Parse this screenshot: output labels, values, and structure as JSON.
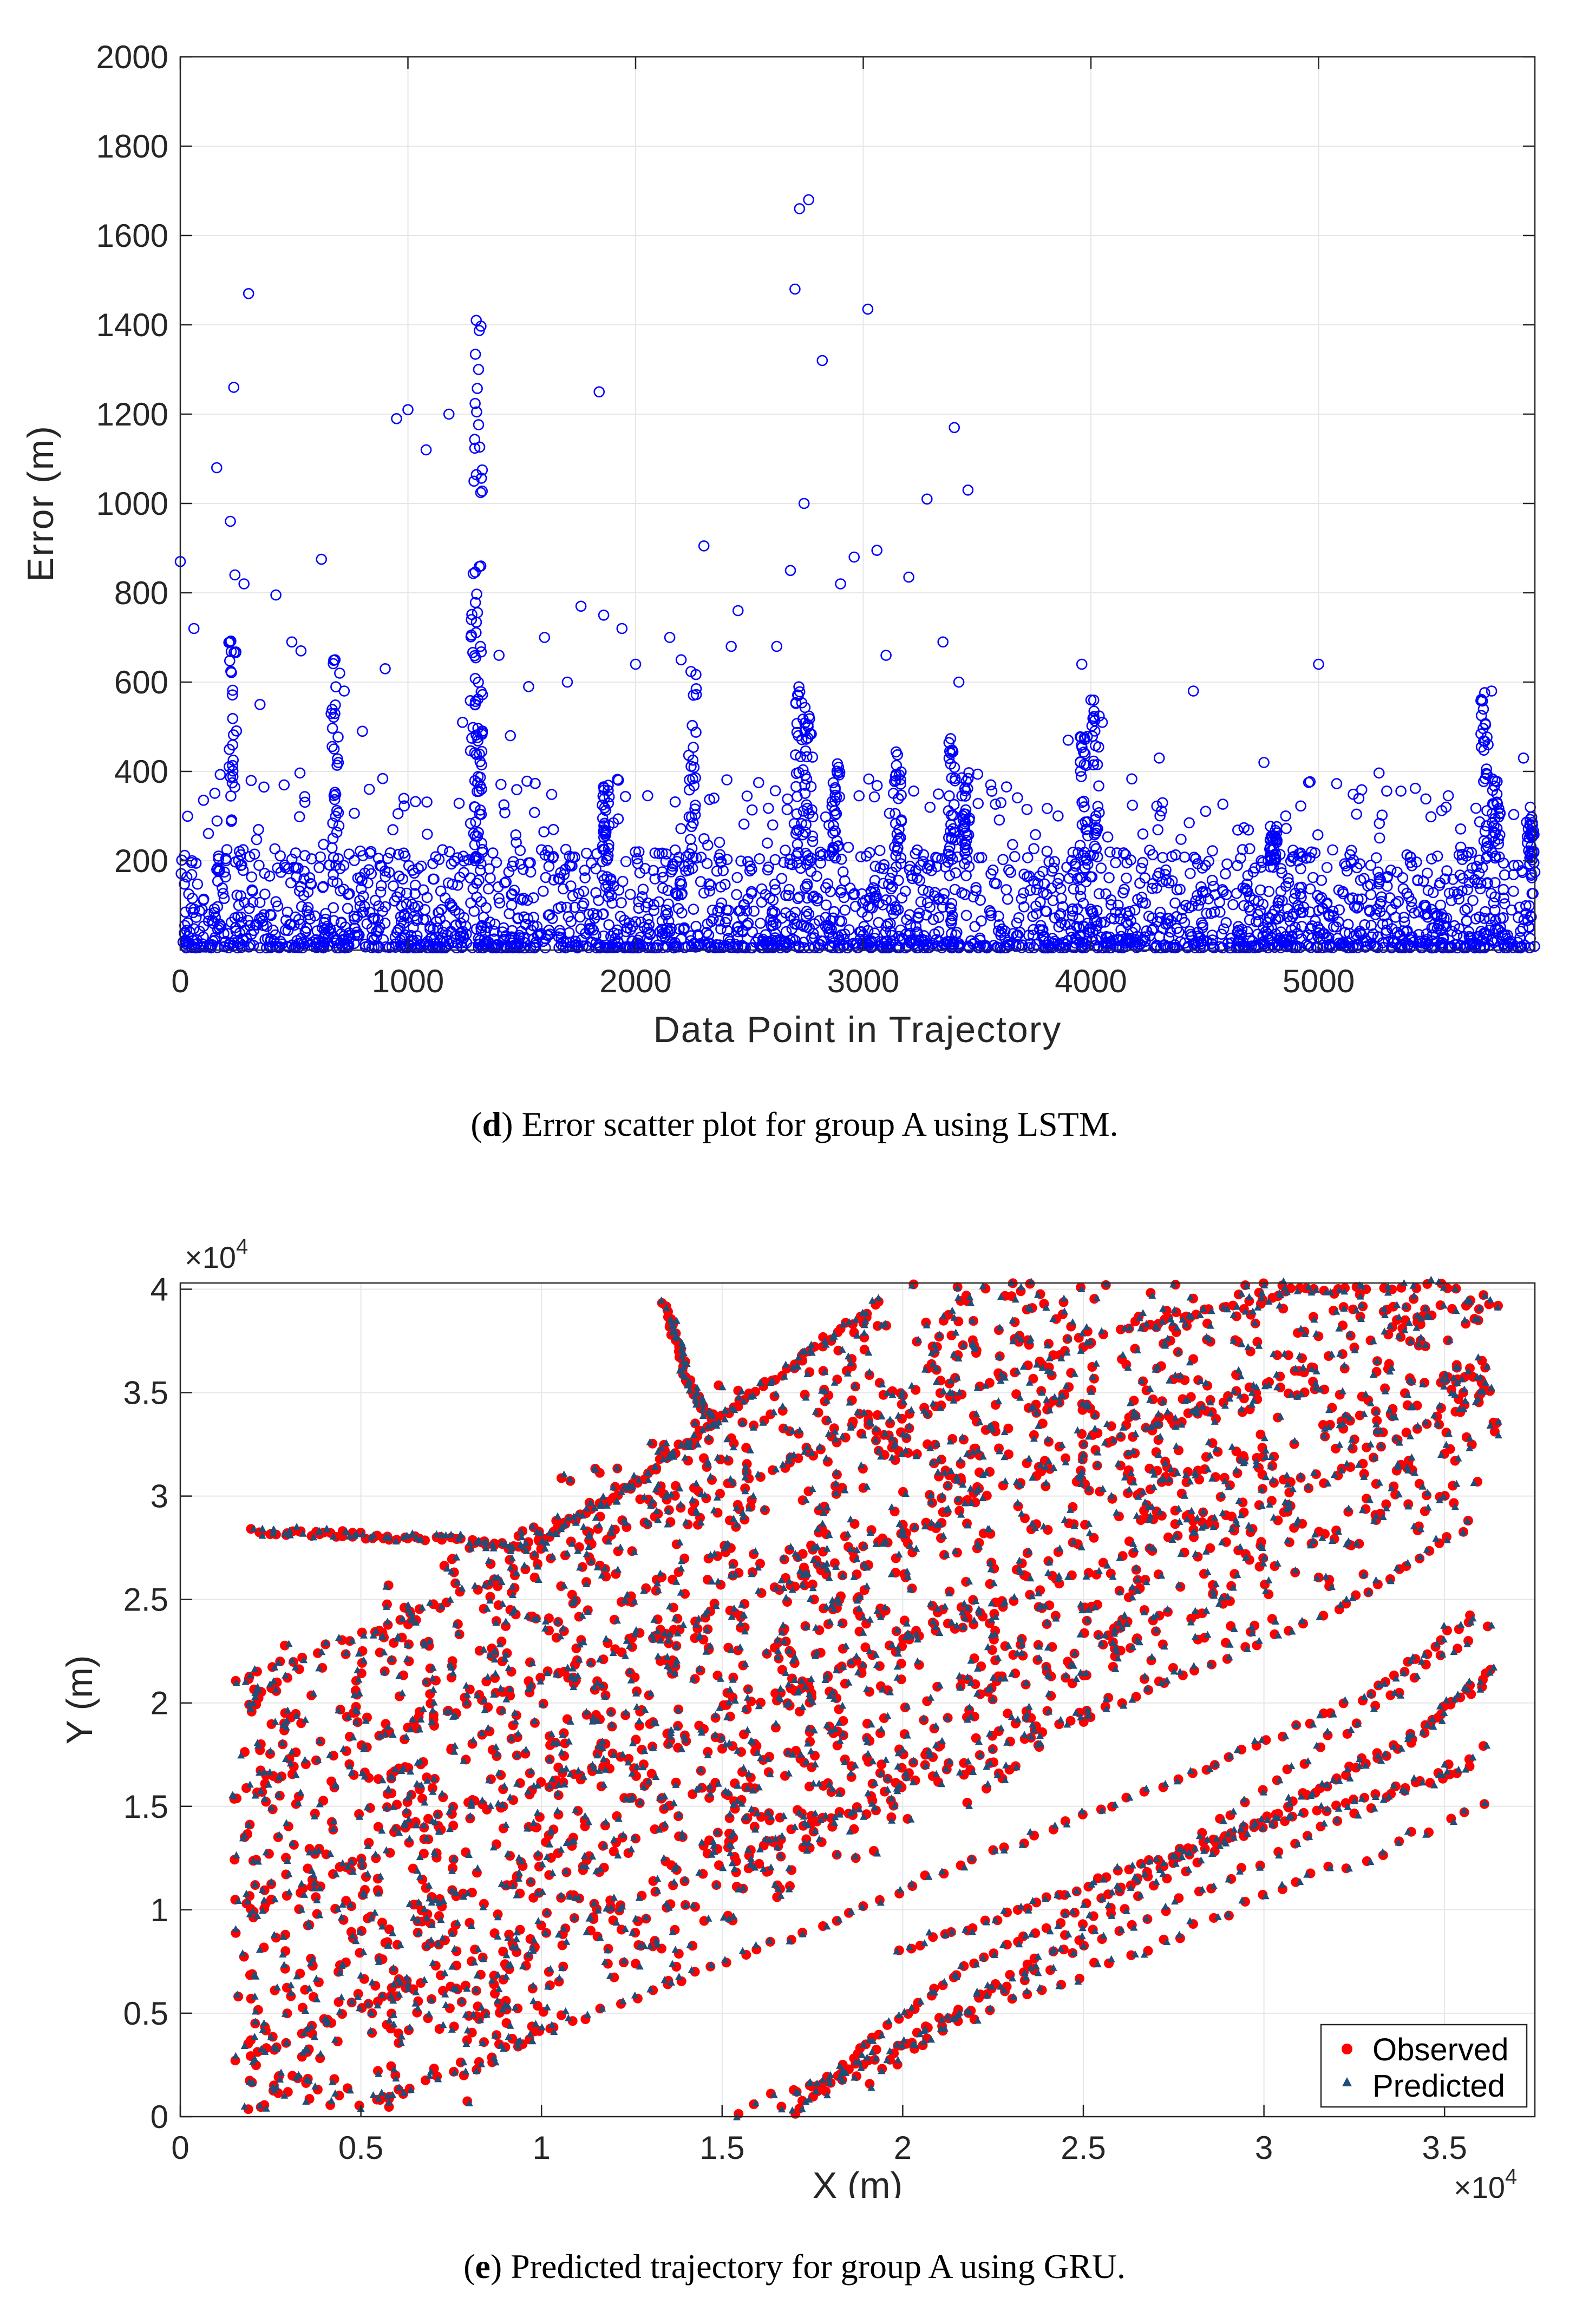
{
  "charts": {
    "d": {
      "caption": {
        "letter": "d",
        "text": "Error scatter plot for group A using LSTM."
      }
    },
    "e": {
      "caption": {
        "letter": "e",
        "text": "Predicted trajectory for group A using GRU."
      }
    }
  },
  "chart_data": [
    {
      "id": "d",
      "type": "scatter",
      "title": "",
      "xlabel": "Data Point in Trajectory",
      "ylabel": "Error (m)",
      "xlim": [
        0,
        5950
      ],
      "ylim": [
        0,
        2000
      ],
      "xticks": [
        0,
        1000,
        2000,
        3000,
        4000,
        5000
      ],
      "xtick_labels": [
        "0",
        "1000",
        "2000",
        "3000",
        "4000",
        "5000"
      ],
      "yticks": [
        200,
        400,
        600,
        800,
        1000,
        1200,
        1400,
        1600,
        1800,
        2000
      ],
      "ytick_labels": [
        "200",
        "400",
        "600",
        "800",
        "1000",
        "1200",
        "1400",
        "1600",
        "1800",
        "2000"
      ],
      "grid": true,
      "marker": "open-circle",
      "color": "#0000ff",
      "series": [
        {
          "name": "Error",
          "x": [
            0,
            60,
            160,
            220,
            235,
            240,
            280,
            300,
            350,
            420,
            490,
            530,
            620,
            680,
            700,
            720,
            800,
            900,
            950,
            1000,
            1080,
            1180,
            1240,
            1290,
            1300,
            1310,
            1320,
            1400,
            1450,
            1530,
            1600,
            1700,
            1760,
            1840,
            1860,
            1940,
            2000,
            2150,
            2200,
            2300,
            2420,
            2450,
            2620,
            2680,
            2700,
            2720,
            2740,
            2760,
            2820,
            2900,
            2960,
            3020,
            3060,
            3100,
            3200,
            3280,
            3350,
            3400,
            3420,
            3460,
            3560,
            3900,
            3960,
            4000,
            4050,
            4300,
            4450,
            4760,
            5000,
            5560,
            5760,
            5900,
            5930
          ],
          "y": [
            870,
            720,
            1080,
            960,
            1260,
            840,
            820,
            1470,
            550,
            795,
            690,
            670,
            875,
            650,
            620,
            580,
            490,
            630,
            1190,
            1210,
            1120,
            1200,
            510,
            1050,
            1410,
            1300,
            860,
            660,
            480,
            590,
            700,
            600,
            770,
            1250,
            750,
            720,
            640,
            700,
            650,
            905,
            680,
            760,
            680,
            850,
            1480,
            1660,
            1000,
            1680,
            1320,
            820,
            880,
            1435,
            895,
            660,
            835,
            1010,
            690,
            1170,
            600,
            1030,
            370,
            470,
            640,
            560,
            510,
            430,
            580,
            420,
            640,
            320,
            580,
            430,
            320
          ]
        },
        {
          "name": "Error (bulk band)",
          "x_range": [
            0,
            5950
          ],
          "y_range": [
            0,
            400
          ],
          "approx_count": 5950,
          "note": "dense band of errors mostly below 200 m"
        }
      ]
    },
    {
      "id": "e",
      "type": "scatter",
      "title": "",
      "xlabel": "X (m)",
      "ylabel": "Y (m)",
      "x_scale_label": "×10^4",
      "y_scale_label": "×10^4",
      "xlim": [
        0,
        3.75
      ],
      "ylim": [
        0,
        4.03
      ],
      "xticks": [
        0,
        0.5,
        1,
        1.5,
        2,
        2.5,
        3,
        3.5
      ],
      "xtick_labels": [
        "0",
        "0.5",
        "1",
        "1.5",
        "2",
        "2.5",
        "3",
        "3.5"
      ],
      "yticks": [
        0,
        0.5,
        1,
        1.5,
        2,
        2.5,
        3,
        3.5,
        4
      ],
      "ytick_labels": [
        "0",
        "0.5",
        "1",
        "1.5",
        "2",
        "2.5",
        "3",
        "3.5",
        "4"
      ],
      "grid": true,
      "legend": {
        "placement": "bottom-right",
        "entries": [
          "Observed",
          "Predicted"
        ]
      },
      "series": [
        {
          "name": "Observed",
          "marker": "filled-circle",
          "color": "#ff0000",
          "trajectories": [
            {
              "x": [
                0.2,
                0.4,
                0.6,
                0.8,
                0.95
              ],
              "y": [
                2.83,
                2.82,
                2.8,
                2.78,
                2.75
              ]
            },
            {
              "x": [
                0.95,
                1.1,
                1.25,
                1.4,
                1.55,
                1.75,
                1.95
              ],
              "y": [
                2.75,
                2.9,
                3.05,
                3.25,
                3.45,
                3.7,
                3.95
              ]
            },
            {
              "x": [
                1.34,
                1.38,
                1.42,
                1.48
              ],
              "y": [
                3.92,
                3.7,
                3.5,
                3.35
              ]
            },
            {
              "x": [
                0.15,
                0.6,
                1.1,
                1.6,
                2.1,
                2.6,
                3.1,
                3.55
              ],
              "y": [
                2.1,
                2.4,
                2.75,
                3.1,
                3.45,
                3.8,
                4.0,
                4.02
              ]
            },
            {
              "x": [
                0.15,
                0.7,
                1.3,
                1.9,
                2.5,
                3.0,
                3.6
              ],
              "y": [
                1.55,
                1.95,
                2.3,
                2.75,
                3.2,
                3.55,
                3.95
              ]
            },
            {
              "x": [
                0.2,
                0.8,
                1.4,
                2.0,
                2.6,
                3.2,
                3.65
              ],
              "y": [
                1.0,
                1.45,
                1.85,
                2.3,
                2.7,
                3.1,
                3.55
              ]
            },
            {
              "x": [
                0.2,
                0.8,
                1.4,
                2.0,
                2.6,
                3.2,
                3.6
              ],
              "y": [
                0.3,
                0.75,
                1.15,
                1.6,
                2.0,
                2.45,
                2.9
              ]
            },
            {
              "x": [
                0.5,
                1.0,
                1.6,
                2.2,
                2.8,
                3.3,
                3.6
              ],
              "y": [
                0.05,
                0.4,
                0.8,
                1.25,
                1.65,
                2.05,
                2.45
              ]
            },
            {
              "x": [
                1.7,
                1.9,
                2.2,
                2.6,
                3.0,
                3.4,
                3.65
              ],
              "y": [
                0.02,
                0.35,
                0.75,
                1.1,
                1.45,
                1.8,
                2.2
              ]
            },
            {
              "x": [
                2.0,
                2.4,
                2.8,
                3.2,
                3.6
              ],
              "y": [
                0.8,
                1.05,
                1.3,
                1.5,
                1.7
              ]
            }
          ]
        },
        {
          "name": "Predicted",
          "marker": "filled-triangle",
          "color": "#1f4e79",
          "note": "closely overlaps observed trajectories"
        }
      ]
    }
  ]
}
